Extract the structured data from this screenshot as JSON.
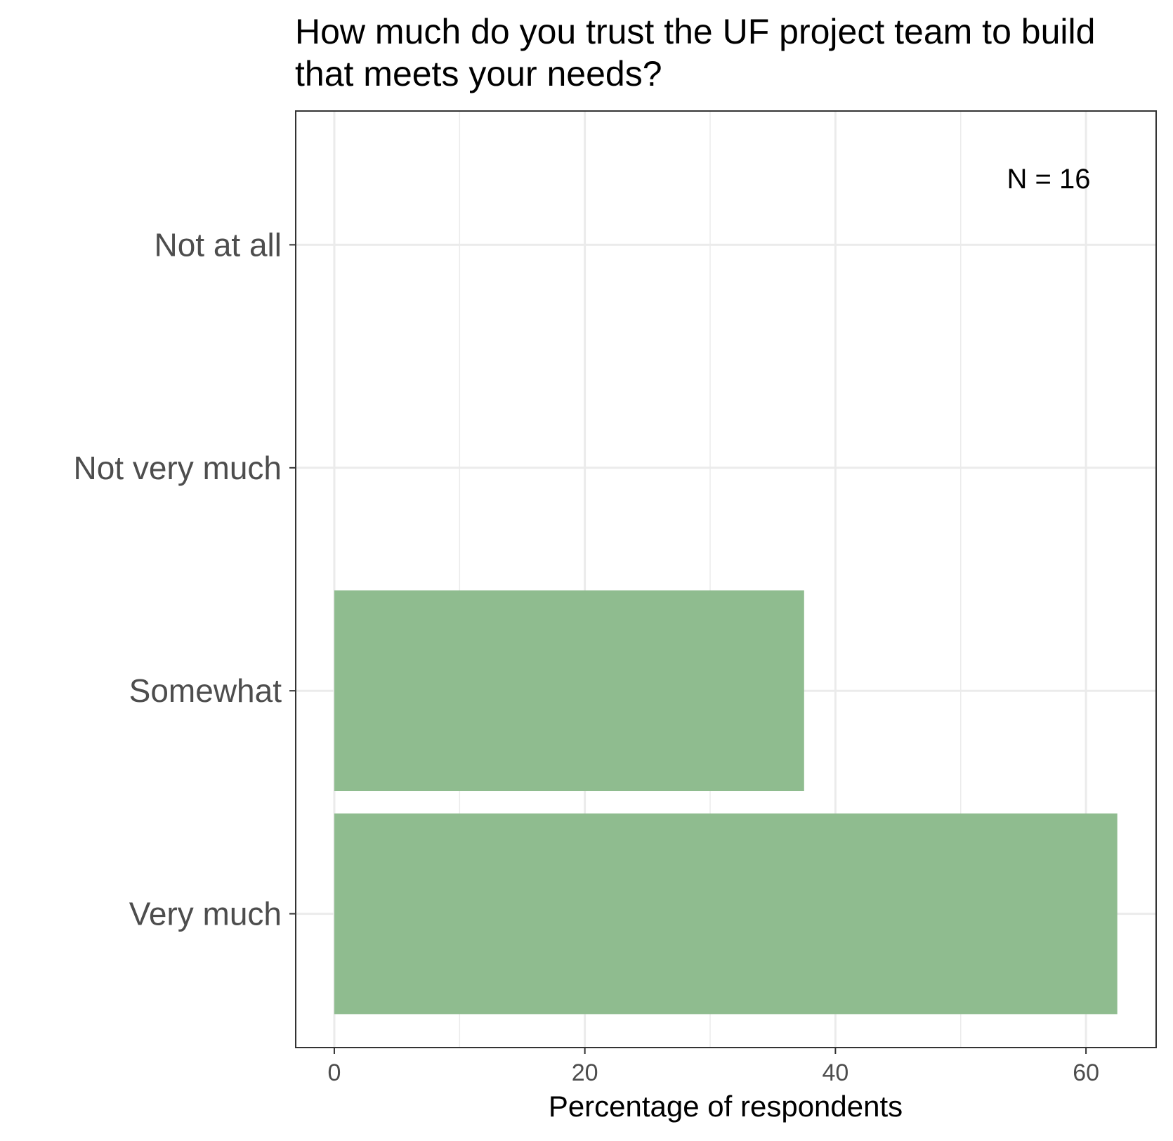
{
  "chart_data": {
    "type": "bar",
    "orientation": "horizontal",
    "title_lines": [
      "How much do you trust the UF project team to build",
      "that meets your needs?"
    ],
    "categories": [
      "Not at all",
      "Not very much",
      "Somewhat",
      "Very much"
    ],
    "values": [
      0,
      0,
      37.5,
      62.5
    ],
    "xlabel": "Percentage of respondents",
    "ylabel": "",
    "xlim": [
      -3.08,
      65.6
    ],
    "xticks": [
      0,
      20,
      40,
      60
    ],
    "annotation": "N = 16",
    "annotation_position": "top-right",
    "grid": true,
    "bar_color": "#8fbc8f"
  }
}
